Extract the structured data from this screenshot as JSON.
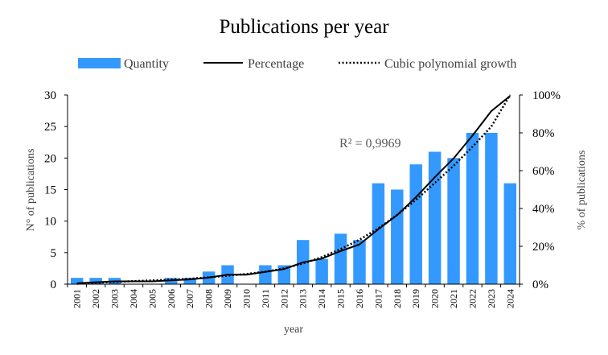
{
  "chart_data": {
    "type": "bar",
    "title": "Publications per year",
    "xlabel": "year",
    "ylabel": "N° of publications",
    "y2label": "% of publications",
    "ylim": [
      0,
      30
    ],
    "y2lim": [
      0,
      100
    ],
    "yticks": [
      "0",
      "5",
      "10",
      "15",
      "20",
      "25",
      "30"
    ],
    "y2ticks": [
      "0%",
      "20%",
      "40%",
      "60%",
      "80%",
      "100%"
    ],
    "categories": [
      "2001",
      "2002",
      "2003",
      "2004",
      "2005",
      "2006",
      "2007",
      "2008",
      "2009",
      "2010",
      "2011",
      "2012",
      "2013",
      "2014",
      "2015",
      "2016",
      "2017",
      "2018",
      "2019",
      "2020",
      "2021",
      "2022",
      "2023",
      "2024"
    ],
    "legend": {
      "position": "top",
      "quantity": "Quantity",
      "percentage": "Percentage",
      "trend": "Cubic polynomial growth"
    },
    "series": [
      {
        "name": "Quantity",
        "type": "bar",
        "axis": "left",
        "color": "#3399ff",
        "values": [
          1,
          1,
          1,
          0,
          0,
          1,
          1,
          2,
          3,
          0,
          3,
          3,
          7,
          4,
          8,
          7,
          16,
          15,
          19,
          21,
          20,
          24,
          24,
          16
        ]
      },
      {
        "name": "Percentage",
        "type": "line",
        "axis": "right",
        "color": "#000000",
        "values": [
          0.5,
          1.0,
          1.5,
          1.5,
          1.5,
          2.0,
          2.5,
          3.5,
          5.0,
          5.0,
          6.5,
          8.0,
          11.5,
          13.5,
          17.5,
          21.0,
          29.0,
          36.5,
          46.0,
          56.5,
          66.5,
          78.5,
          91.5,
          99.5
        ]
      },
      {
        "name": "Cubic polynomial growth",
        "type": "line",
        "axis": "right",
        "color": "#000000",
        "dash": "dotted",
        "values": [
          0.2,
          0.7,
          1.2,
          1.6,
          2.0,
          2.4,
          2.9,
          3.6,
          4.5,
          5.4,
          6.6,
          8.3,
          10.9,
          14.3,
          18.5,
          23.5,
          29.5,
          36.6,
          44.6,
          53.5,
          62.6,
          72.6,
          83.3,
          100.0
        ]
      }
    ],
    "annotations": [
      {
        "text": "R² = 0,9969"
      }
    ]
  }
}
